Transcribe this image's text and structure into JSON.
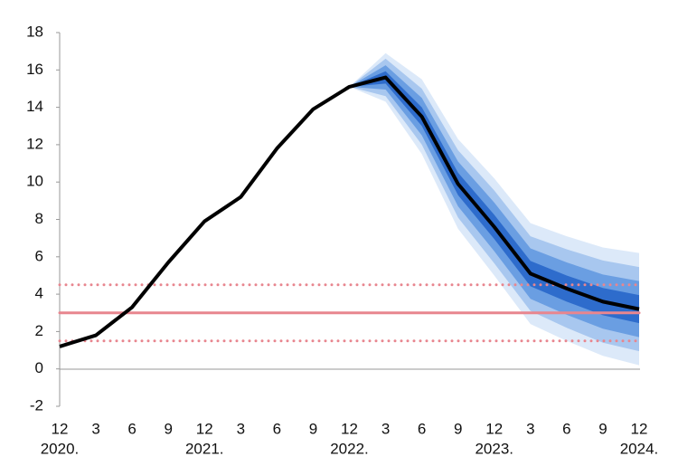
{
  "chart_data": {
    "type": "fan",
    "categories": [
      "12",
      "3",
      "6",
      "9",
      "12",
      "3",
      "6",
      "9",
      "12",
      "3",
      "6",
      "9",
      "12",
      "3",
      "6",
      "9",
      "12"
    ],
    "years": [
      "2020.",
      null,
      null,
      null,
      "2021.",
      null,
      null,
      null,
      "2022.",
      null,
      null,
      null,
      "2023.",
      null,
      null,
      null,
      "2024."
    ],
    "series": [
      {
        "color": "#000000",
        "values": [
          1.2,
          1.8,
          3.3,
          5.7,
          7.9,
          9.2,
          11.8,
          13.9,
          15.1,
          15.6,
          13.5,
          9.9,
          7.6,
          5.1,
          4.3,
          3.6,
          3.2
        ]
      }
    ],
    "fan": [
      {
        "color": "#dce9f9",
        "upper": [
          null,
          null,
          null,
          null,
          null,
          null,
          null,
          null,
          15.1,
          16.9,
          15.5,
          12.3,
          10.2,
          7.8,
          7.1,
          6.5,
          6.2
        ],
        "lower": [
          null,
          null,
          null,
          null,
          null,
          null,
          null,
          null,
          15.1,
          14.3,
          11.5,
          7.5,
          5.0,
          2.4,
          1.5,
          0.7,
          0.2
        ]
      },
      {
        "color": "#a8c7ef",
        "upper": [
          null,
          null,
          null,
          null,
          null,
          null,
          null,
          null,
          15.1,
          16.6,
          15.0,
          11.7,
          9.55,
          7.1,
          6.4,
          5.8,
          5.45
        ],
        "lower": [
          null,
          null,
          null,
          null,
          null,
          null,
          null,
          null,
          15.1,
          14.6,
          12.0,
          8.1,
          5.65,
          3.1,
          2.2,
          1.4,
          0.95
        ]
      },
      {
        "color": "#6a9ee2",
        "upper": [
          null,
          null,
          null,
          null,
          null,
          null,
          null,
          null,
          15.1,
          16.25,
          14.5,
          11.1,
          8.9,
          6.45,
          5.7,
          5.05,
          4.7
        ],
        "lower": [
          null,
          null,
          null,
          null,
          null,
          null,
          null,
          null,
          15.1,
          14.95,
          12.5,
          8.7,
          6.3,
          3.75,
          2.9,
          2.15,
          1.7
        ]
      },
      {
        "color": "#2e6ccc",
        "upper": [
          null,
          null,
          null,
          null,
          null,
          null,
          null,
          null,
          15.1,
          15.93,
          14.0,
          10.5,
          8.25,
          5.78,
          5.0,
          4.33,
          3.95
        ],
        "lower": [
          null,
          null,
          null,
          null,
          null,
          null,
          null,
          null,
          15.1,
          15.27,
          13.0,
          9.3,
          6.95,
          4.42,
          3.6,
          2.87,
          2.45
        ]
      }
    ],
    "hlines": [
      {
        "value": 4.5,
        "style": "dotted",
        "color": "#e8868f"
      },
      {
        "value": 3,
        "style": "solid",
        "color": "#e8868f"
      },
      {
        "value": 1.5,
        "style": "dotted",
        "color": "#e8868f"
      }
    ],
    "ylim": [
      -2,
      18
    ],
    "yticks": [
      -2,
      0,
      2,
      4,
      6,
      8,
      10,
      12,
      14,
      16,
      18
    ]
  }
}
